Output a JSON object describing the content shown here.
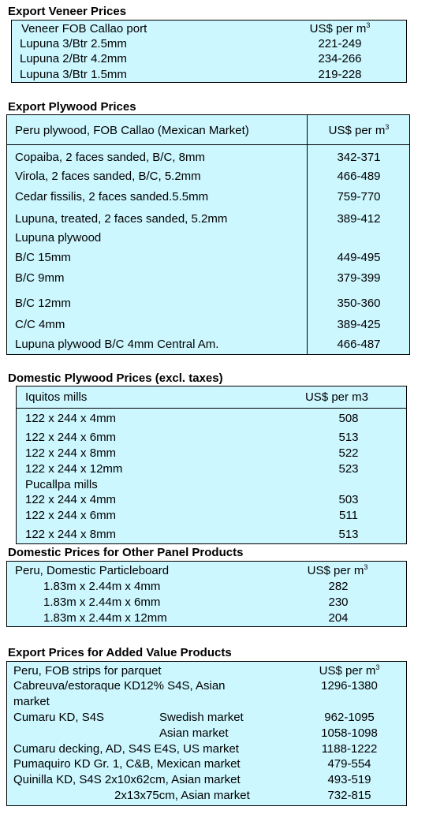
{
  "veneer": {
    "title": "Export Veneer Prices",
    "header_left": "Veneer  FOB Callao port",
    "header_right": "US$ per m",
    "header_sup": "3",
    "rows": [
      {
        "name": "Lupuna 3/Btr 2.5mm",
        "price": "221-249"
      },
      {
        "name": "Lupuna 2/Btr 4.2mm",
        "price": "234-266"
      },
      {
        "name": "Lupuna 3/Btr 1.5mm",
        "price": "219-228"
      }
    ]
  },
  "plywood": {
    "title": "Export Plywood Prices",
    "header_left": "Peru plywood, FOB Callao (Mexican Market)",
    "header_right": "US$ per m",
    "header_sup": "3",
    "rows": [
      {
        "name": "Copaiba, 2 faces sanded, B/C, 8mm",
        "price": "342-371"
      },
      {
        "name": "Virola, 2 faces sanded, B/C, 5.2mm",
        "price": "466-489"
      },
      {
        "name": "Cedar fissilis, 2 faces sanded.5.5mm",
        "price": "759-770"
      },
      {
        "name": "Lupuna, treated, 2 faces sanded, 5.2mm",
        "price": "389-412"
      },
      {
        "name": "Lupuna plywood",
        "price": ""
      },
      {
        "name": "B/C 15mm",
        "price": "449-495"
      },
      {
        "name": "B/C 9mm",
        "price": "379-399"
      },
      {
        "name": "B/C 12mm",
        "price": "350-360"
      },
      {
        "name": "C/C 4mm",
        "price": "389-425"
      },
      {
        "name": "Lupuna plywood B/C 4mm Central Am.",
        "price": "466-487"
      }
    ]
  },
  "domestic_plywood": {
    "title": "Domestic Plywood Prices (excl. taxes)",
    "header_left": "Iquitos mills",
    "header_right": "US$ per m3",
    "rows": [
      {
        "name": "122 x 244 x 4mm",
        "price": "508"
      },
      {
        "name": "122 x 244 x 6mm",
        "price": "513"
      },
      {
        "name": "122 x 244 x 8mm",
        "price": "522"
      },
      {
        "name": "122 x 244 x 12mm",
        "price": "523"
      },
      {
        "name": "Pucallpa mills",
        "price": ""
      },
      {
        "name": "122 x 244 x 4mm",
        "price": "503"
      },
      {
        "name": "122 x 244 x 6mm",
        "price": "511"
      },
      {
        "name": "122 x 244 x 8mm",
        "price": "513"
      }
    ]
  },
  "other_panels": {
    "title": "Domestic Prices for Other Panel Products",
    "header_left": "Peru, Domestic Particleboard",
    "header_right": "US$ per m",
    "header_sup": "3",
    "rows": [
      {
        "name": "1.83m x 2.44m x 4mm",
        "price": "282"
      },
      {
        "name": "1.83m x 2.44m x 6mm",
        "price": "230"
      },
      {
        "name": "1.83m x 2.44m x 12mm",
        "price": "204"
      }
    ]
  },
  "added_value": {
    "title": "Export Prices for Added Value Products",
    "header_left": "Peru, FOB strips for parquet",
    "header_right": "US$ per m",
    "header_sup": "3",
    "rows": [
      {
        "name": "Cabreuva/estoraque KD12% S4S, Asian",
        "market": "",
        "price": "1296-1380"
      },
      {
        "name": "market",
        "market": "",
        "price": ""
      },
      {
        "name": "Cumaru KD, S4S",
        "market": "Swedish market",
        "price": "962-1095"
      },
      {
        "name": "",
        "market": "Asian market",
        "price": "1058-1098"
      },
      {
        "name": "Cumaru decking, AD, S4S E4S,  US market",
        "market": "",
        "price": "1188-1222"
      },
      {
        "name": "Pumaquiro KD Gr. 1, C&B,  Mexican market",
        "market": "",
        "price": "479-554"
      },
      {
        "name": "Quinilla KD, S4S 2x10x62cm,  Asian market",
        "market": "",
        "price": "493-519"
      },
      {
        "name": "2x13x75cm, Asian market",
        "market": "",
        "price": "732-815"
      }
    ]
  }
}
